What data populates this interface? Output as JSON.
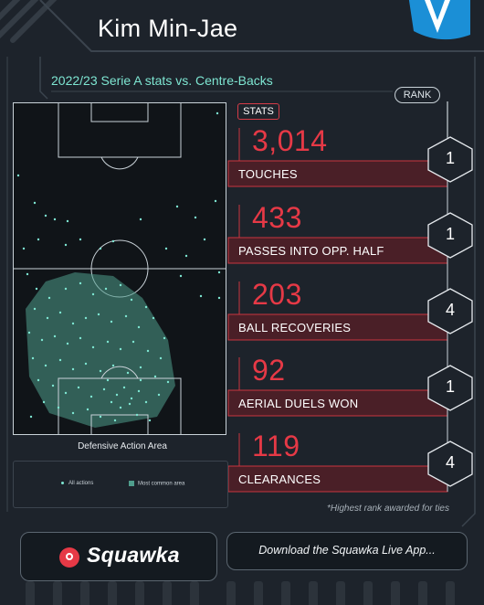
{
  "title": "Kim Min-Jae",
  "subtitle": "2022/23 Serie A stats vs. Centre-Backs",
  "rank_heading": "RANK",
  "stats_heading": "STATS",
  "stats": [
    {
      "value": "3,014",
      "label": "TOUCHES",
      "rank": "1"
    },
    {
      "value": "433",
      "label": "PASSES INTO OPP. HALF",
      "rank": "1"
    },
    {
      "value": "203",
      "label": "BALL RECOVERIES",
      "rank": "4"
    },
    {
      "value": "92",
      "label": "AERIAL DUELS WON",
      "rank": "1"
    },
    {
      "value": "119",
      "label": "CLEARANCES",
      "rank": "4"
    }
  ],
  "pitch": {
    "caption": "Defensive Action Area",
    "legend": {
      "all_actions": "All actions",
      "most_common_area": "Most common area"
    }
  },
  "footnote": "*Highest rank awarded for ties",
  "footer": {
    "logo_text": "Squawka",
    "download_text": "Download the Squawka Live App..."
  },
  "colors": {
    "accent": "#e63946",
    "teal": "#7ee6d2",
    "area": "#4f9d8c",
    "background": "#1d232b"
  }
}
